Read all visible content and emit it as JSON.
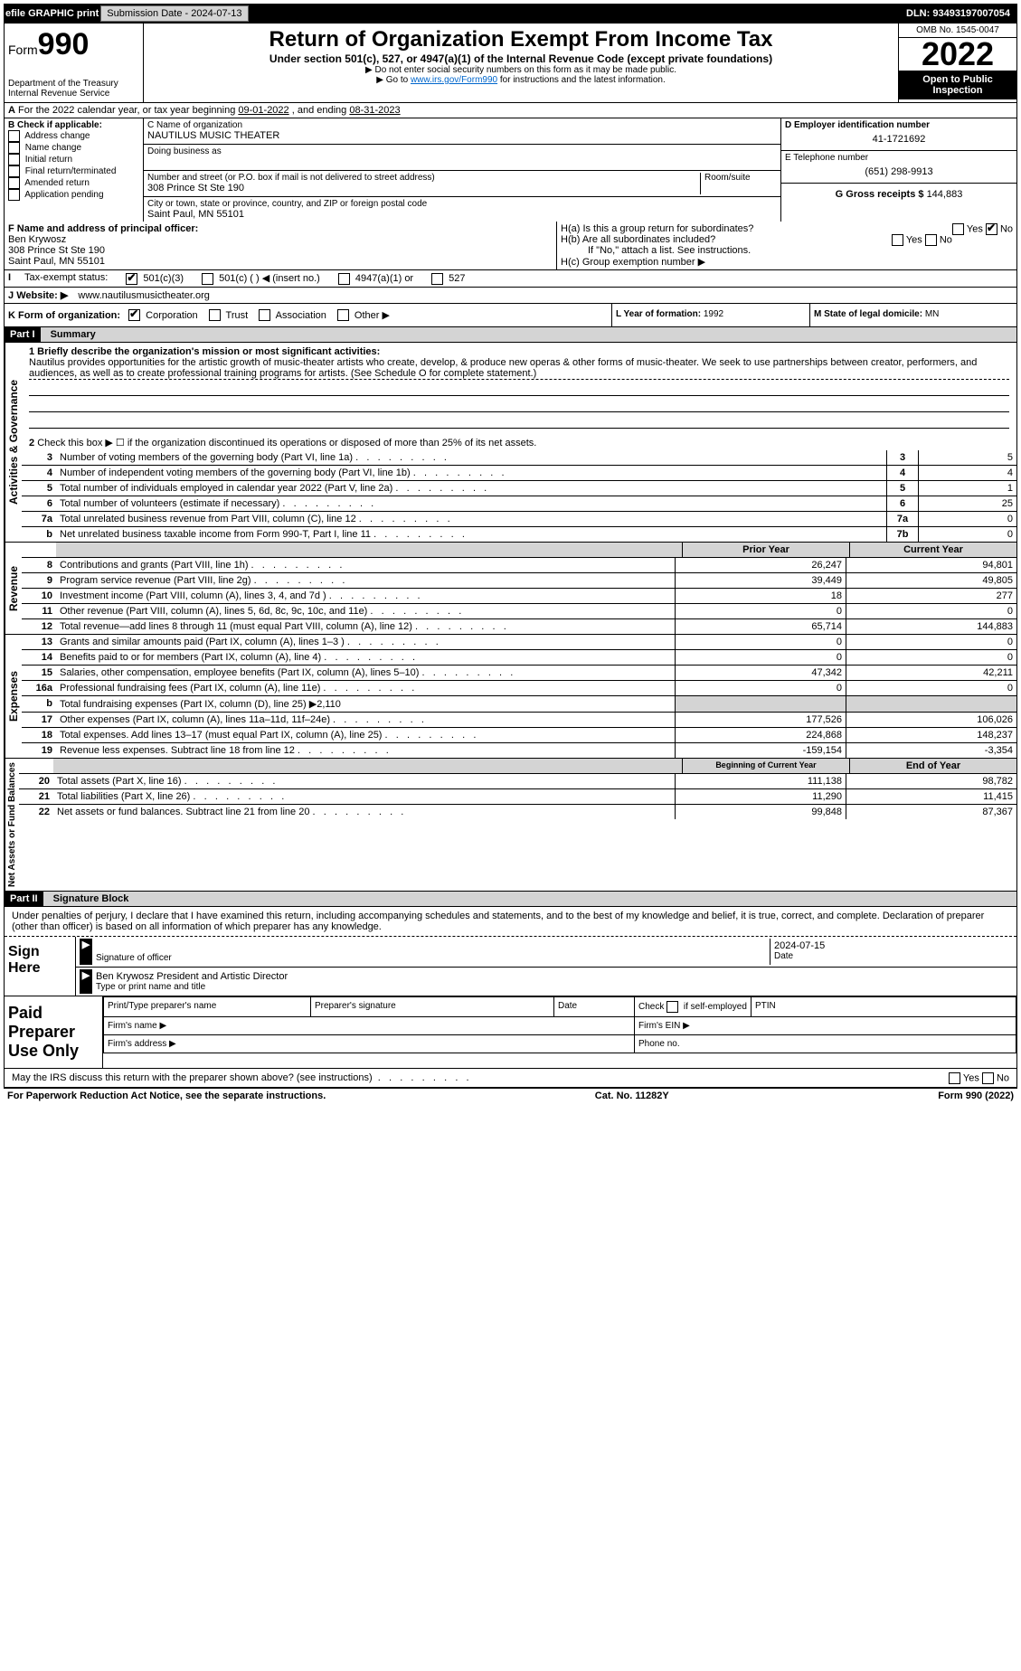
{
  "topbar": {
    "efile_label": "efile GRAPHIC print",
    "submission_date_btn": "Submission Date - 2024-07-13",
    "dln": "DLN: 93493197007054"
  },
  "header": {
    "form_word": "Form",
    "form_num": "990",
    "title": "Return of Organization Exempt From Income Tax",
    "subtitle": "Under section 501(c), 527, or 4947(a)(1) of the Internal Revenue Code (except private foundations)",
    "warn": "▶ Do not enter social security numbers on this form as it may be made public.",
    "goto_pre": "▶ Go to ",
    "goto_link": "www.irs.gov/Form990",
    "goto_post": " for instructions and the latest information.",
    "dept": "Department of the Treasury",
    "irs": "Internal Revenue Service",
    "omb": "OMB No. 1545-0047",
    "year": "2022",
    "open_public": "Open to Public Inspection"
  },
  "rowA": {
    "text_pre": "For the 2022 calendar year, or tax year beginning ",
    "begin": "09-01-2022",
    "mid": "   , and ending ",
    "end": "08-31-2023"
  },
  "boxB": {
    "label": "B Check if applicable:",
    "opts": [
      "Address change",
      "Name change",
      "Initial return",
      "Final return/terminated",
      "Amended return",
      "Application pending"
    ]
  },
  "boxC": {
    "name_label": "C Name of organization",
    "name": "NAUTILUS MUSIC THEATER",
    "dba_label": "Doing business as",
    "dba": "",
    "street_label": "Number and street (or P.O. box if mail is not delivered to street address)",
    "room_label": "Room/suite",
    "street": "308 Prince St Ste 190",
    "city_label": "City or town, state or province, country, and ZIP or foreign postal code",
    "city": "Saint Paul, MN  55101"
  },
  "boxD": {
    "label": "D Employer identification number",
    "ein": "41-1721692"
  },
  "boxE": {
    "label": "E Telephone number",
    "phone": "(651) 298-9913"
  },
  "boxG": {
    "label": "G Gross receipts $",
    "amount": "144,883"
  },
  "boxF": {
    "label": "F  Name and address of principal officer:",
    "name": "Ben Krywosz",
    "street": "308 Prince St Ste 190",
    "city": "Saint Paul, MN  55101"
  },
  "boxH": {
    "a_label": "H(a)  Is this a group return for subordinates?",
    "b_label": "H(b)  Are all subordinates included?",
    "b_note": "If \"No,\" attach a list. See instructions.",
    "c_label": "H(c)  Group exemption number ▶",
    "yes": "Yes",
    "no": "No"
  },
  "rowI": {
    "label": "Tax-exempt status:",
    "opts": [
      "501(c)(3)",
      "501(c) (   ) ◀ (insert no.)",
      "4947(a)(1) or",
      "527"
    ]
  },
  "rowJ": {
    "label": "Website: ▶",
    "url": "www.nautilusmusictheater.org"
  },
  "rowK": {
    "label": "K Form of organization:",
    "opts": [
      "Corporation",
      "Trust",
      "Association",
      "Other ▶"
    ]
  },
  "rowL": {
    "label": "L Year of formation:",
    "val": "1992"
  },
  "rowM": {
    "label": "M State of legal domicile:",
    "val": "MN"
  },
  "partI": {
    "header": "Part I",
    "title": "Summary"
  },
  "gov": {
    "label": "Activities & Governance",
    "l1_label": "1  Briefly describe the organization's mission or most significant activities:",
    "l1_text": "Nautilus provides opportunities for the artistic growth of music-theater artists who create, develop, & produce new operas & other forms of music-theater. We seek to use partnerships between creator, performers, and audiences, as well as to create professional training programs for artists. (See Schedule O for complete statement.)",
    "l2": "Check this box ▶ ☐  if the organization discontinued its operations or disposed of more than 25% of its net assets.",
    "rows": [
      {
        "n": "3",
        "d": "Number of voting members of the governing body (Part VI, line 1a)",
        "box": "3",
        "v": "5"
      },
      {
        "n": "4",
        "d": "Number of independent voting members of the governing body (Part VI, line 1b)",
        "box": "4",
        "v": "4"
      },
      {
        "n": "5",
        "d": "Total number of individuals employed in calendar year 2022 (Part V, line 2a)",
        "box": "5",
        "v": "1"
      },
      {
        "n": "6",
        "d": "Total number of volunteers (estimate if necessary)",
        "box": "6",
        "v": "25"
      },
      {
        "n": "7a",
        "d": "Total unrelated business revenue from Part VIII, column (C), line 12",
        "box": "7a",
        "v": "0"
      },
      {
        "n": "b",
        "d": "Net unrelated business taxable income from Form 990-T, Part I, line 11",
        "box": "7b",
        "v": "0"
      }
    ]
  },
  "rev": {
    "label": "Revenue",
    "prior_hdr": "Prior Year",
    "curr_hdr": "Current Year",
    "rows": [
      {
        "n": "8",
        "d": "Contributions and grants (Part VIII, line 1h)",
        "p": "26,247",
        "c": "94,801"
      },
      {
        "n": "9",
        "d": "Program service revenue (Part VIII, line 2g)",
        "p": "39,449",
        "c": "49,805"
      },
      {
        "n": "10",
        "d": "Investment income (Part VIII, column (A), lines 3, 4, and 7d )",
        "p": "18",
        "c": "277"
      },
      {
        "n": "11",
        "d": "Other revenue (Part VIII, column (A), lines 5, 6d, 8c, 9c, 10c, and 11e)",
        "p": "0",
        "c": "0"
      },
      {
        "n": "12",
        "d": "Total revenue—add lines 8 through 11 (must equal Part VIII, column (A), line 12)",
        "p": "65,714",
        "c": "144,883"
      }
    ]
  },
  "exp": {
    "label": "Expenses",
    "rows": [
      {
        "n": "13",
        "d": "Grants and similar amounts paid (Part IX, column (A), lines 1–3 )",
        "p": "0",
        "c": "0"
      },
      {
        "n": "14",
        "d": "Benefits paid to or for members (Part IX, column (A), line 4)",
        "p": "0",
        "c": "0"
      },
      {
        "n": "15",
        "d": "Salaries, other compensation, employee benefits (Part IX, column (A), lines 5–10)",
        "p": "47,342",
        "c": "42,211"
      },
      {
        "n": "16a",
        "d": "Professional fundraising fees (Part IX, column (A), line 11e)",
        "p": "0",
        "c": "0"
      },
      {
        "n": "b",
        "d": "Total fundraising expenses (Part IX, column (D), line 25) ▶2,110",
        "p": "",
        "c": "",
        "shaded": true
      },
      {
        "n": "17",
        "d": "Other expenses (Part IX, column (A), lines 11a–11d, 11f–24e)",
        "p": "177,526",
        "c": "106,026"
      },
      {
        "n": "18",
        "d": "Total expenses. Add lines 13–17 (must equal Part IX, column (A), line 25)",
        "p": "224,868",
        "c": "148,237"
      },
      {
        "n": "19",
        "d": "Revenue less expenses. Subtract line 18 from line 12",
        "p": "-159,154",
        "c": "-3,354"
      }
    ]
  },
  "net": {
    "label": "Net Assets or Fund Balances",
    "begin_hdr": "Beginning of Current Year",
    "end_hdr": "End of Year",
    "rows": [
      {
        "n": "20",
        "d": "Total assets (Part X, line 16)",
        "p": "111,138",
        "c": "98,782"
      },
      {
        "n": "21",
        "d": "Total liabilities (Part X, line 26)",
        "p": "11,290",
        "c": "11,415"
      },
      {
        "n": "22",
        "d": "Net assets or fund balances. Subtract line 21 from line 20",
        "p": "99,848",
        "c": "87,367"
      }
    ]
  },
  "partII": {
    "header": "Part II",
    "title": "Signature Block"
  },
  "sig": {
    "penalty": "Under penalties of perjury, I declare that I have examined this return, including accompanying schedules and statements, and to the best of my knowledge and belief, it is true, correct, and complete. Declaration of preparer (other than officer) is based on all information of which preparer has any knowledge.",
    "sign_here": "Sign Here",
    "sig_officer_label": "Signature of officer",
    "date_label": "Date",
    "date": "2024-07-15",
    "name_title": "Ben Krywosz President and Artistic Director",
    "type_label": "Type or print name and title"
  },
  "prep": {
    "label": "Paid Preparer Use Only",
    "h1": "Print/Type preparer's name",
    "h2": "Preparer's signature",
    "h3": "Date",
    "h4_pre": "Check ",
    "h4_post": " if self-employed",
    "h5": "PTIN",
    "firm_name": "Firm's name  ▶",
    "firm_ein": "Firm's EIN ▶",
    "firm_addr": "Firm's address ▶",
    "phone": "Phone no.",
    "discuss": "May the IRS discuss this return with the preparer shown above? (see instructions)",
    "yes": "Yes",
    "no": "No"
  },
  "footer": {
    "left": "For Paperwork Reduction Act Notice, see the separate instructions.",
    "mid": "Cat. No. 11282Y",
    "right": "Form 990 (2022)"
  }
}
